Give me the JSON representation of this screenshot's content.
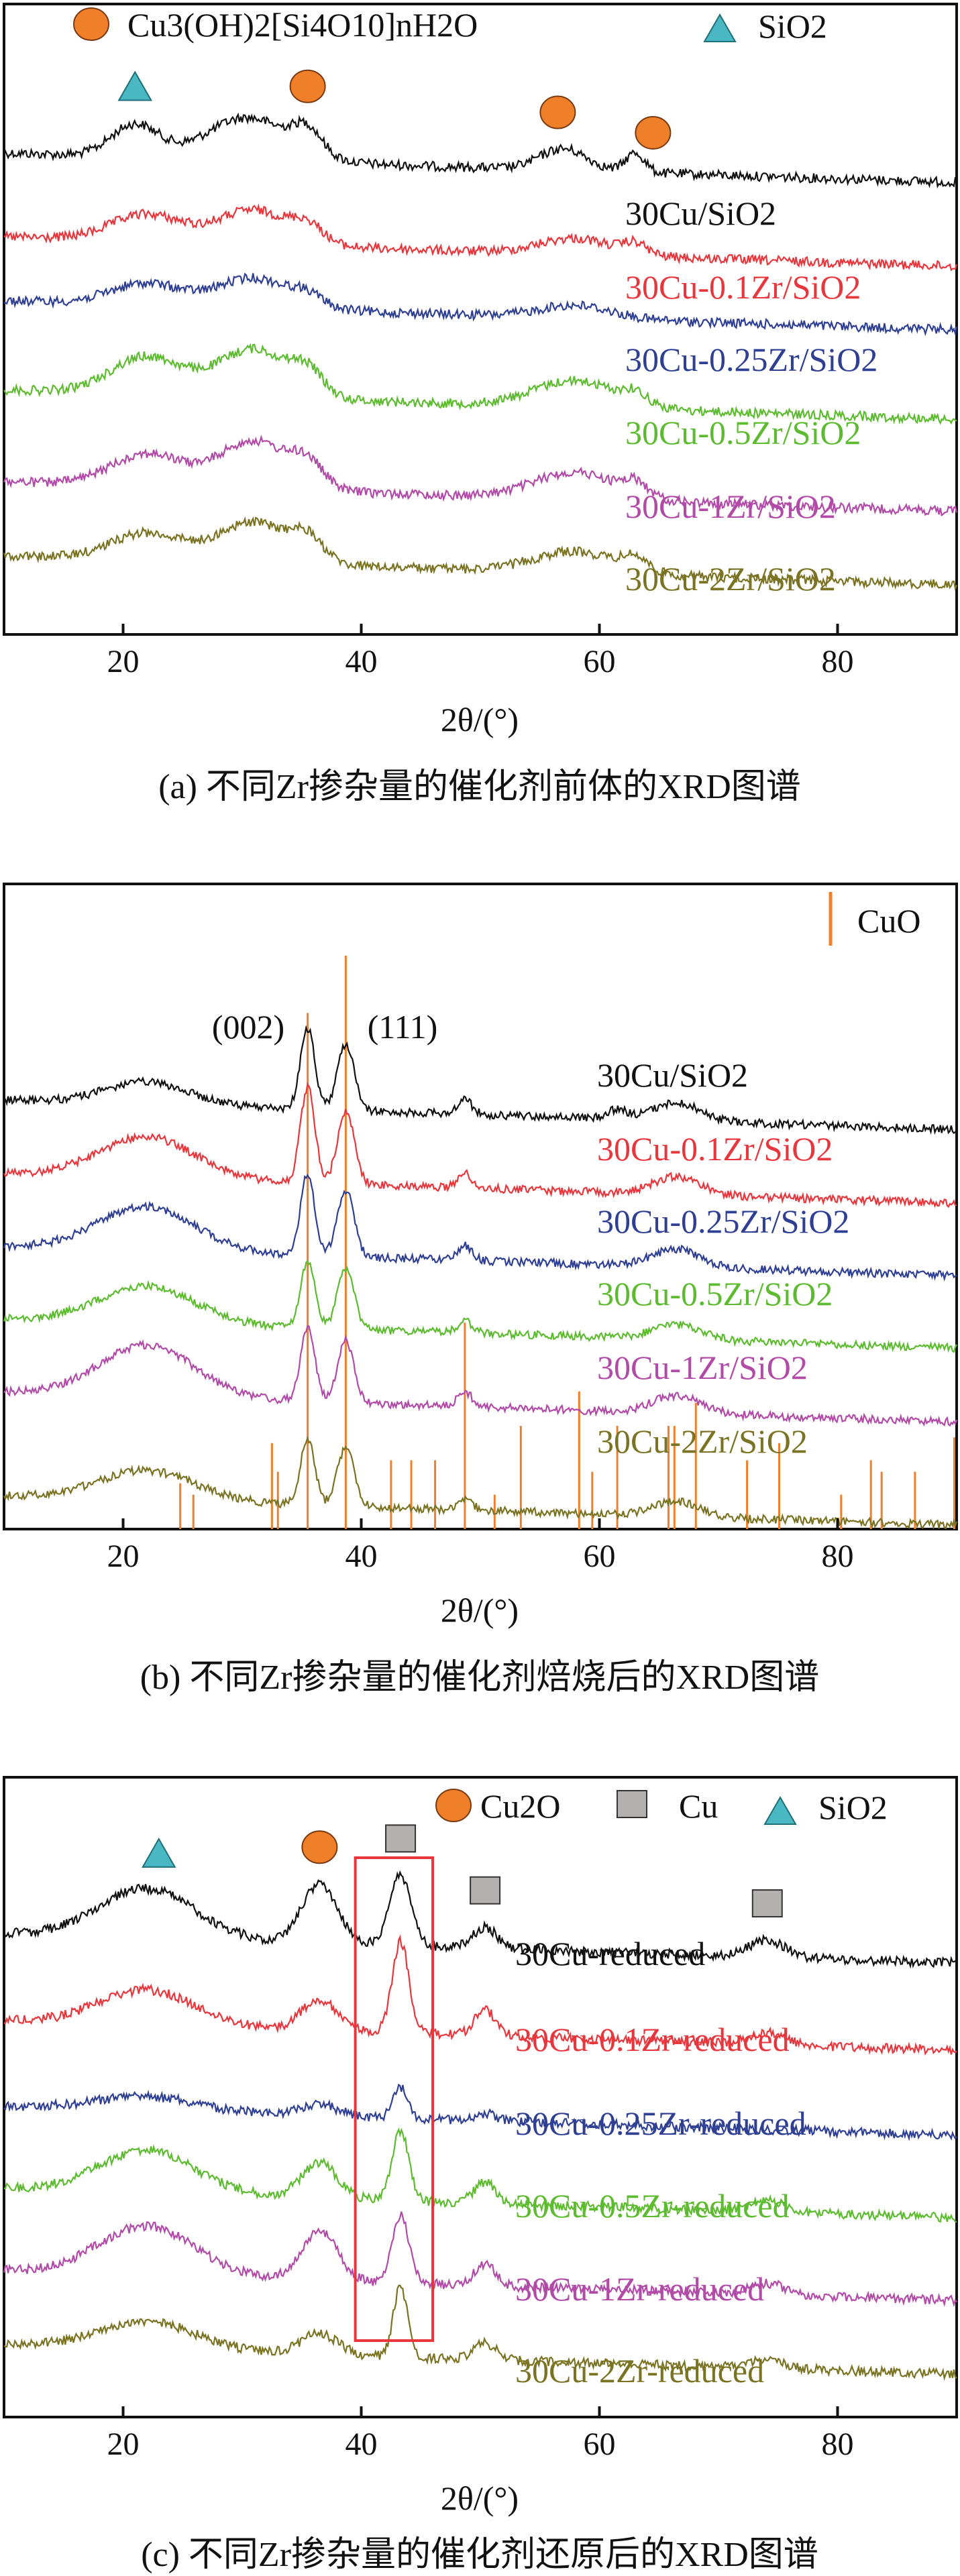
{
  "chart_data": [
    {
      "type": "line",
      "id": "a",
      "caption": "(a) 不同Zr掺杂量的催化剂前体的XRD图谱",
      "xlabel": "2θ/(°)",
      "xlim": [
        10,
        90
      ],
      "xticks": [
        20,
        40,
        60,
        80
      ],
      "ylabel": "",
      "legend": [
        {
          "marker": "circle",
          "label": "Cu3(OH)2[Si4O10]nH2O",
          "color": "#f07f2a"
        },
        {
          "marker": "triangle",
          "label": "SiO2",
          "color": "#4ab8c2"
        }
      ],
      "phase_markers": [
        {
          "marker": "triangle",
          "x": 21,
          "series": "30Cu/SiO2"
        },
        {
          "marker": "circle",
          "x": 35.5,
          "series": "30Cu/SiO2"
        },
        {
          "marker": "circle",
          "x": 56.5,
          "series": "30Cu/SiO2"
        },
        {
          "marker": "circle",
          "x": 64.5,
          "series": "30Cu/SiO2"
        }
      ],
      "series": [
        {
          "name": "30Cu/SiO2",
          "color": "#111111",
          "peaks": [
            [
              21,
              0.3,
              2.0
            ],
            [
              30.5,
              0.4,
              3.5
            ],
            [
              35.5,
              0.22,
              1.2
            ],
            [
              57,
              0.2,
              2.0
            ],
            [
              63,
              0.18,
              0.8
            ]
          ]
        },
        {
          "name": "30Cu-0.1Zr/SiO2",
          "color": "#e8363c",
          "peaks": [
            [
              22,
              0.25,
              3.0
            ],
            [
              31,
              0.32,
              3.0
            ],
            [
              35.5,
              0.15,
              1.3
            ],
            [
              58,
              0.15,
              3.0
            ],
            [
              63,
              0.1,
              1.0
            ]
          ]
        },
        {
          "name": "30Cu-0.25Zr/SiO2",
          "color": "#2e3f94",
          "peaks": [
            [
              22,
              0.2,
              3.0
            ],
            [
              31,
              0.28,
              3.0
            ],
            [
              35.5,
              0.1,
              1.3
            ],
            [
              58,
              0.12,
              3.0
            ]
          ]
        },
        {
          "name": "30Cu-0.5Zr/SiO2",
          "color": "#5dbb2f",
          "peaks": [
            [
              22,
              0.35,
              3.0
            ],
            [
              31,
              0.45,
              3.0
            ],
            [
              35.5,
              0.2,
              1.3
            ],
            [
              58,
              0.25,
              3.5
            ],
            [
              63,
              0.1,
              1.0
            ]
          ]
        },
        {
          "name": "30Cu-1Zr/SiO2",
          "color": "#b24aa8",
          "peaks": [
            [
              22,
              0.3,
              3.0
            ],
            [
              31,
              0.45,
              3.0
            ],
            [
              35.5,
              0.2,
              1.3
            ],
            [
              58,
              0.25,
              3.5
            ],
            [
              63,
              0.12,
              1.0
            ]
          ]
        },
        {
          "name": "30Cu-2Zr/SiO2",
          "color": "#7a7322",
          "peaks": [
            [
              22,
              0.25,
              3.0
            ],
            [
              31,
              0.38,
              3.0
            ],
            [
              35.5,
              0.2,
              1.3
            ],
            [
              58,
              0.2,
              3.5
            ],
            [
              63,
              0.12,
              1.0
            ]
          ]
        }
      ]
    },
    {
      "type": "line",
      "id": "b",
      "caption": "(b) 不同Zr掺杂量的催化剂焙烧后的XRD图谱",
      "xlabel": "2θ/(°)",
      "xlim": [
        10,
        90
      ],
      "xticks": [
        20,
        40,
        60,
        80
      ],
      "ylabel": "",
      "legend": [
        {
          "marker": "stick",
          "label": "CuO",
          "color": "#f07f2a"
        }
      ],
      "peak_labels": [
        {
          "x": 35.5,
          "label": "(002)"
        },
        {
          "x": 38.7,
          "label": "(111)"
        }
      ],
      "reference_sticks": [
        {
          "x": 24.8,
          "h": 0.08
        },
        {
          "x": 25.9,
          "h": 0.06
        },
        {
          "x": 32.5,
          "h": 0.15
        },
        {
          "x": 33.0,
          "h": 0.1
        },
        {
          "x": 35.5,
          "h": 0.9
        },
        {
          "x": 38.7,
          "h": 1.0
        },
        {
          "x": 42.5,
          "h": 0.12
        },
        {
          "x": 44.2,
          "h": 0.12
        },
        {
          "x": 46.2,
          "h": 0.12
        },
        {
          "x": 48.7,
          "h": 0.36
        },
        {
          "x": 51.2,
          "h": 0.06
        },
        {
          "x": 53.4,
          "h": 0.18
        },
        {
          "x": 58.3,
          "h": 0.24
        },
        {
          "x": 59.4,
          "h": 0.1
        },
        {
          "x": 61.5,
          "h": 0.18
        },
        {
          "x": 65.8,
          "h": 0.18
        },
        {
          "x": 66.3,
          "h": 0.18
        },
        {
          "x": 68.1,
          "h": 0.22
        },
        {
          "x": 72.4,
          "h": 0.12
        },
        {
          "x": 75.1,
          "h": 0.15
        },
        {
          "x": 80.3,
          "h": 0.06
        },
        {
          "x": 82.8,
          "h": 0.12
        },
        {
          "x": 83.7,
          "h": 0.1
        },
        {
          "x": 86.5,
          "h": 0.1
        },
        {
          "x": 89.8,
          "h": 0.16
        }
      ],
      "series": [
        {
          "name": "30Cu/SiO2",
          "color": "#111111",
          "peaks": [
            [
              22,
              0.15,
              3.5
            ],
            [
              35.5,
              0.55,
              0.6
            ],
            [
              38.7,
              0.45,
              0.7
            ],
            [
              48.7,
              0.1,
              0.6
            ],
            [
              61.5,
              0.06,
              0.8
            ],
            [
              66.5,
              0.12,
              2.0
            ]
          ]
        },
        {
          "name": "30Cu-0.1Zr/SiO2",
          "color": "#e8363c",
          "peaks": [
            [
              22,
              0.28,
              4.0
            ],
            [
              35.5,
              0.65,
              0.6
            ],
            [
              38.7,
              0.5,
              0.7
            ],
            [
              48.7,
              0.1,
              0.6
            ],
            [
              66.5,
              0.12,
              2.0
            ]
          ]
        },
        {
          "name": "30Cu-0.25Zr/SiO2",
          "color": "#2e3f94",
          "peaks": [
            [
              22,
              0.3,
              4.0
            ],
            [
              35.5,
              0.55,
              0.6
            ],
            [
              38.7,
              0.45,
              0.7
            ],
            [
              48.7,
              0.1,
              0.6
            ],
            [
              66.5,
              0.12,
              2.0
            ]
          ]
        },
        {
          "name": "30Cu-0.5Zr/SiO2",
          "color": "#5dbb2f",
          "peaks": [
            [
              22,
              0.25,
              4.0
            ],
            [
              35.5,
              0.45,
              0.6
            ],
            [
              38.7,
              0.4,
              0.7
            ],
            [
              48.7,
              0.08,
              0.6
            ],
            [
              66.5,
              0.1,
              2.0
            ]
          ]
        },
        {
          "name": "30Cu-1Zr/SiO2",
          "color": "#b24aa8",
          "peaks": [
            [
              22,
              0.35,
              4.0
            ],
            [
              35.5,
              0.5,
              0.6
            ],
            [
              38.7,
              0.42,
              0.7
            ],
            [
              48.7,
              0.1,
              0.6
            ],
            [
              66.5,
              0.12,
              2.0
            ]
          ]
        },
        {
          "name": "30Cu-2Zr/SiO2",
          "color": "#7a7322",
          "peaks": [
            [
              22,
              0.2,
              4.0
            ],
            [
              35.5,
              0.45,
              0.6
            ],
            [
              38.7,
              0.4,
              0.7
            ],
            [
              48.7,
              0.08,
              0.6
            ],
            [
              66.5,
              0.1,
              2.0
            ]
          ]
        }
      ]
    },
    {
      "type": "line",
      "id": "c",
      "caption": "(c) 不同Zr掺杂量的催化剂还原后的XRD图谱",
      "xlabel": "2θ/(°)",
      "xlim": [
        10,
        90
      ],
      "xticks": [
        20,
        40,
        60,
        80
      ],
      "ylabel": "",
      "legend": [
        {
          "marker": "circle",
          "label": "Cu2O",
          "color": "#f07f2a"
        },
        {
          "marker": "square",
          "label": "Cu",
          "color": "#b4b0b0"
        },
        {
          "marker": "triangle",
          "label": "SiO2",
          "color": "#4ab8c2"
        }
      ],
      "phase_markers": [
        {
          "marker": "triangle",
          "x": 23,
          "series": "30Cu-reduced"
        },
        {
          "marker": "circle",
          "x": 36.5,
          "series": "30Cu-reduced"
        },
        {
          "marker": "square",
          "x": 43.3,
          "series": "30Cu-reduced"
        },
        {
          "marker": "square",
          "x": 50.4,
          "series": "30Cu-reduced"
        },
        {
          "marker": "square",
          "x": 74.1,
          "series": "30Cu-reduced"
        }
      ],
      "highlight_box": {
        "x_from": 39.5,
        "x_to": 46,
        "color": "#e8363c"
      },
      "series": [
        {
          "name": "30Cu-reduced",
          "color": "#111111",
          "peaks": [
            [
              22,
              0.35,
              4.0
            ],
            [
              36.5,
              0.42,
              1.5
            ],
            [
              43.3,
              0.5,
              0.9
            ],
            [
              50.4,
              0.15,
              1.0
            ],
            [
              74.1,
              0.12,
              1.5
            ]
          ]
        },
        {
          "name": "30Cu-0.1Zr-reduced",
          "color": "#e8363c",
          "peaks": [
            [
              22,
              0.25,
              4.0
            ],
            [
              36.5,
              0.22,
              1.5
            ],
            [
              43.3,
              0.65,
              0.7
            ],
            [
              50.4,
              0.18,
              0.9
            ],
            [
              74.1,
              0.08,
              1.5
            ]
          ]
        },
        {
          "name": "30Cu-0.25Zr-reduced",
          "color": "#2e3f94",
          "peaks": [
            [
              22,
              0.1,
              4.0
            ],
            [
              36.5,
              0.08,
              1.5
            ],
            [
              43.3,
              0.22,
              0.6
            ],
            [
              50.4,
              0.05,
              0.9
            ]
          ]
        },
        {
          "name": "30Cu-0.5Zr-reduced",
          "color": "#5dbb2f",
          "peaks": [
            [
              22,
              0.3,
              4.0
            ],
            [
              36.5,
              0.25,
              1.5
            ],
            [
              43.3,
              0.5,
              0.7
            ],
            [
              50.4,
              0.15,
              0.9
            ],
            [
              74.1,
              0.08,
              1.5
            ]
          ]
        },
        {
          "name": "30Cu-1Zr-reduced",
          "color": "#b24aa8",
          "peaks": [
            [
              22,
              0.35,
              4.0
            ],
            [
              36.5,
              0.35,
              1.5
            ],
            [
              43.3,
              0.48,
              0.7
            ],
            [
              50.4,
              0.15,
              0.9
            ],
            [
              74.1,
              0.08,
              1.5
            ]
          ]
        },
        {
          "name": "30Cu-2Zr-reduced",
          "color": "#7a7322",
          "peaks": [
            [
              22,
              0.2,
              4.0
            ],
            [
              36.5,
              0.15,
              1.5
            ],
            [
              43.3,
              0.5,
              0.6
            ],
            [
              50.4,
              0.12,
              0.9
            ],
            [
              74.1,
              0.06,
              1.5
            ]
          ]
        }
      ]
    }
  ]
}
